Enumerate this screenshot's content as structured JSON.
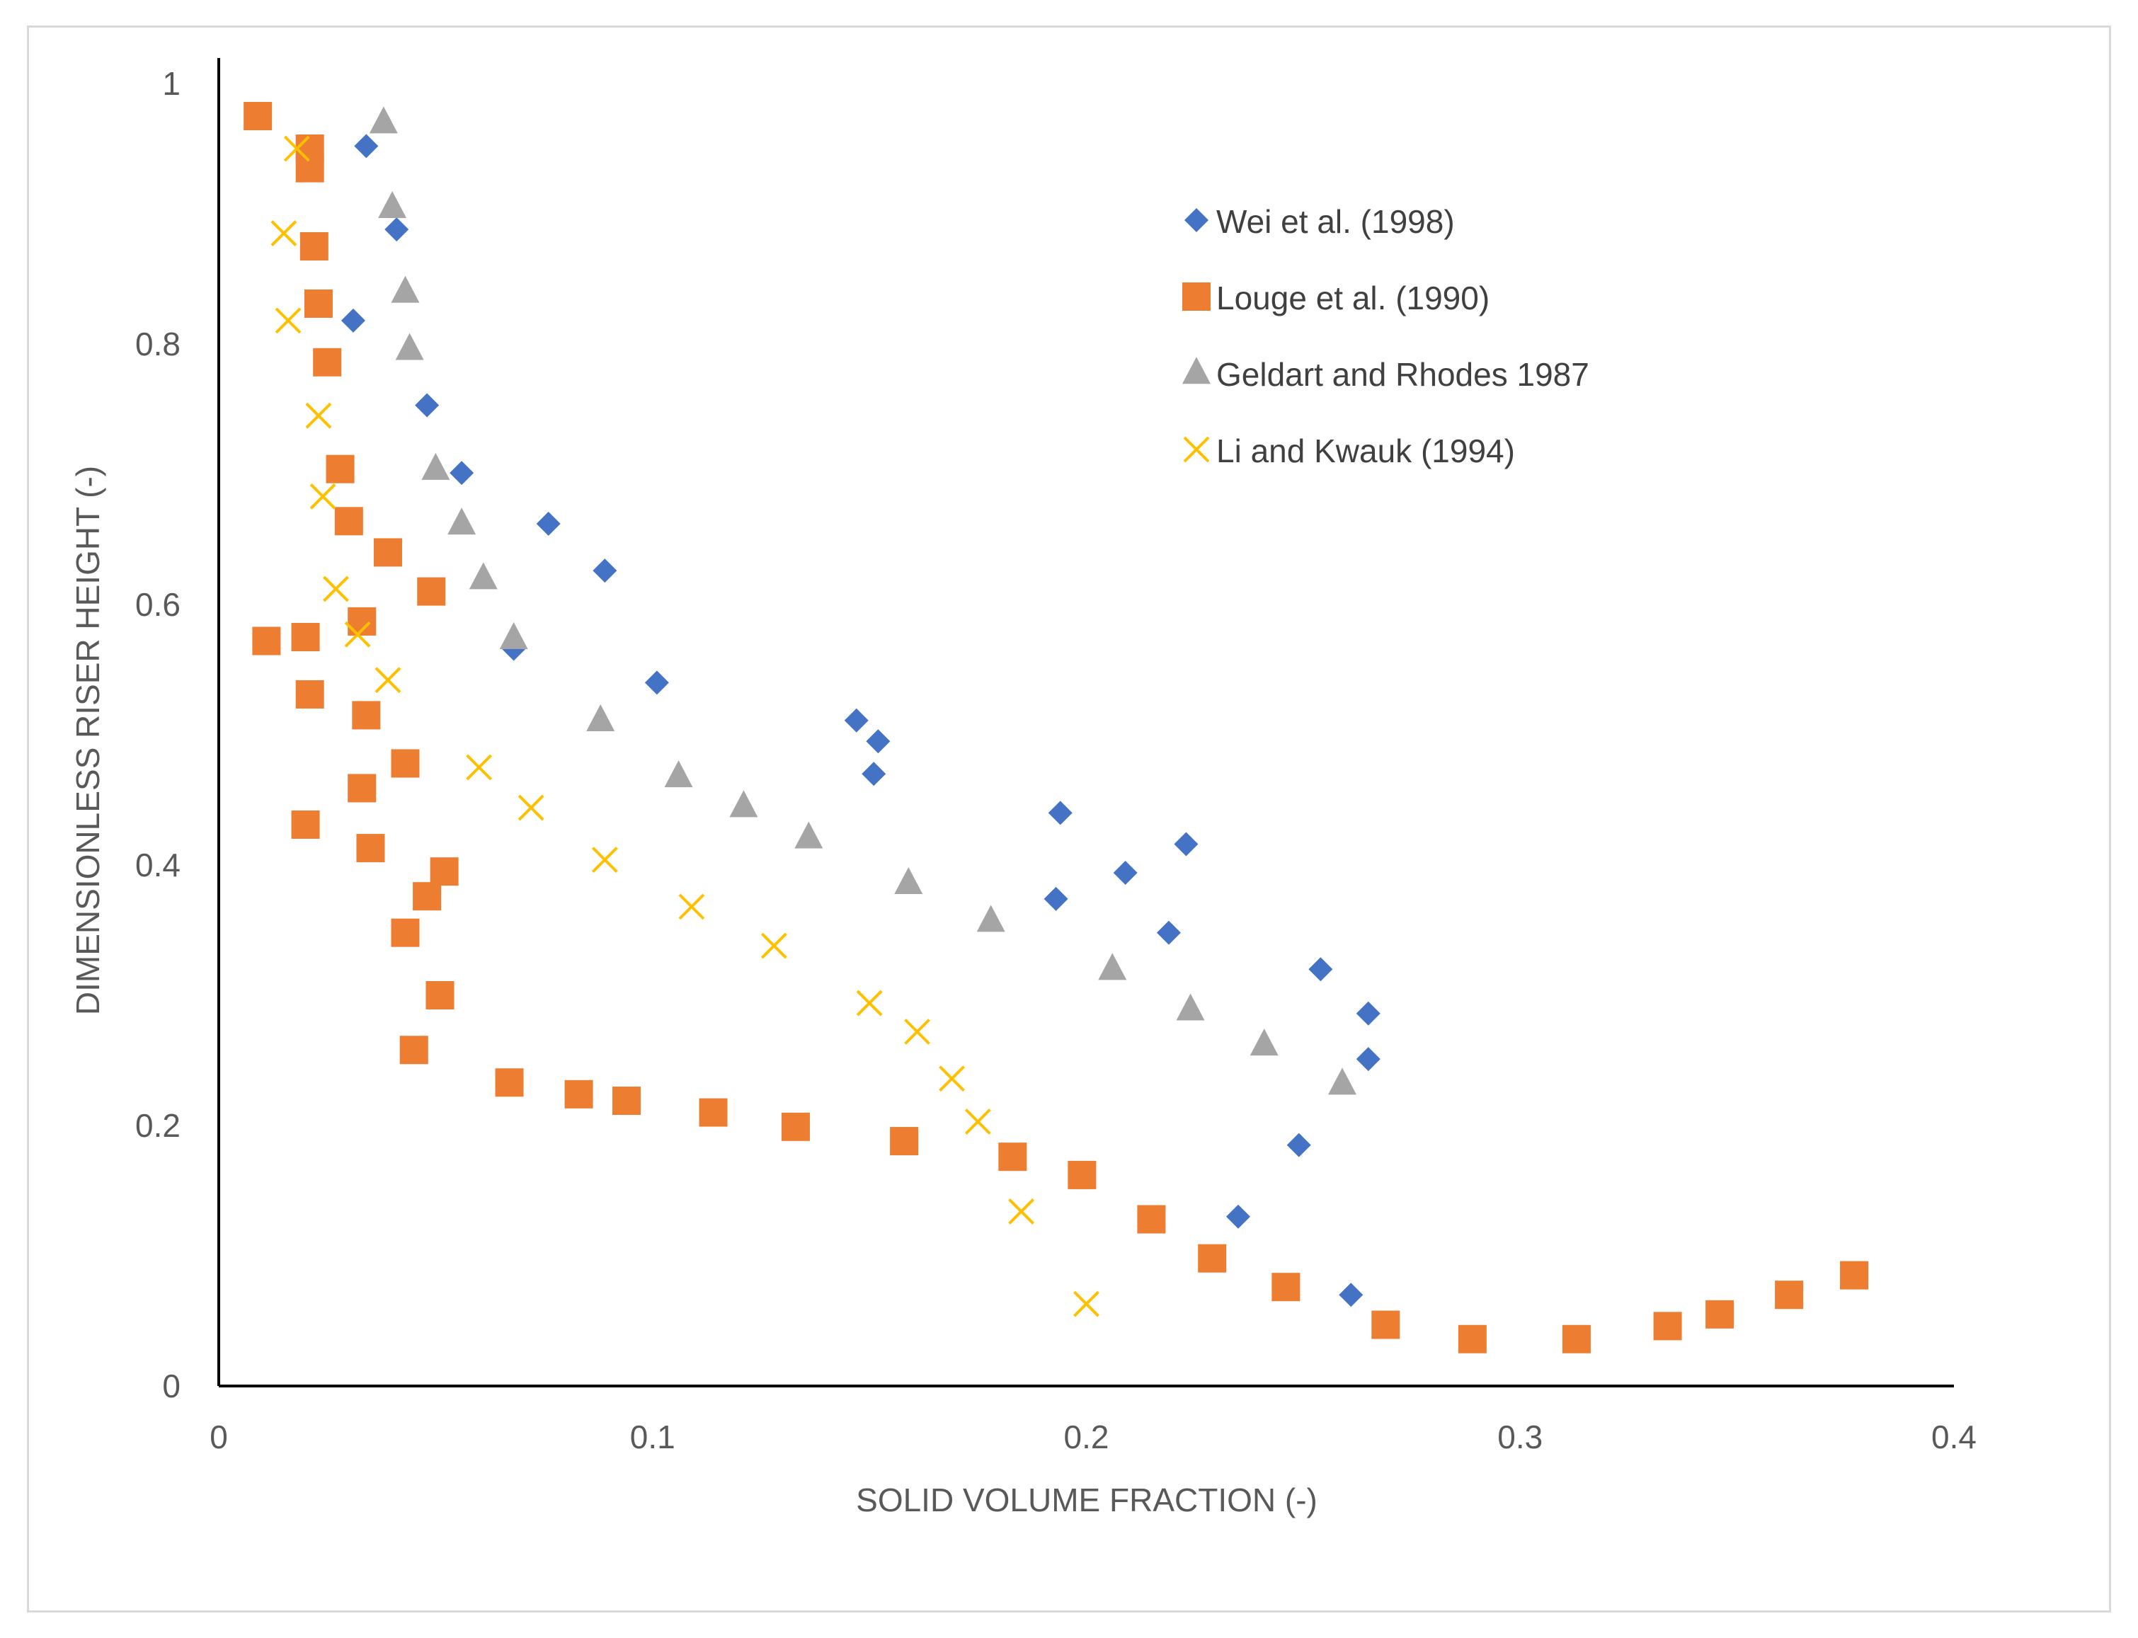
{
  "chart_data": {
    "type": "scatter",
    "title": "",
    "xlabel": "SOLID VOLUME FRACTION (-)",
    "ylabel": "DIMENSIONLESS RISER HEIGHT (-)",
    "xlim": [
      0,
      0.4
    ],
    "ylim": [
      0,
      1
    ],
    "xticks": [
      0,
      0.1,
      0.2,
      0.3,
      0.4
    ],
    "xtick_labels": [
      "0",
      "0.1",
      "0.2",
      "0.3",
      "0.4"
    ],
    "yticks": [
      0,
      0.2,
      0.4,
      0.6,
      0.8,
      1
    ],
    "ytick_labels": [
      "0",
      "0.2",
      "0.4",
      "0.6",
      "0.8",
      "1"
    ],
    "grid": false,
    "legend_position": "right",
    "series": [
      {
        "name": "Wei et al. (1998)",
        "marker": "diamond",
        "color": "#4472c4",
        "points": [
          [
            0.034,
            0.952
          ],
          [
            0.041,
            0.888
          ],
          [
            0.031,
            0.818
          ],
          [
            0.048,
            0.753
          ],
          [
            0.056,
            0.701
          ],
          [
            0.076,
            0.662
          ],
          [
            0.089,
            0.626
          ],
          [
            0.068,
            0.566
          ],
          [
            0.101,
            0.54
          ],
          [
            0.147,
            0.511
          ],
          [
            0.152,
            0.495
          ],
          [
            0.151,
            0.47
          ],
          [
            0.194,
            0.44
          ],
          [
            0.209,
            0.394
          ],
          [
            0.223,
            0.416
          ],
          [
            0.193,
            0.374
          ],
          [
            0.219,
            0.348
          ],
          [
            0.254,
            0.32
          ],
          [
            0.265,
            0.286
          ],
          [
            0.265,
            0.251
          ],
          [
            0.249,
            0.185
          ],
          [
            0.235,
            0.13
          ],
          [
            0.261,
            0.07
          ]
        ]
      },
      {
        "name": "Louge et al. (1990)",
        "marker": "square",
        "color": "#ed7d31",
        "points": [
          [
            0.009,
            0.975
          ],
          [
            0.021,
            0.95
          ],
          [
            0.021,
            0.935
          ],
          [
            0.022,
            0.875
          ],
          [
            0.023,
            0.831
          ],
          [
            0.025,
            0.786
          ],
          [
            0.028,
            0.704
          ],
          [
            0.03,
            0.664
          ],
          [
            0.039,
            0.64
          ],
          [
            0.049,
            0.61
          ],
          [
            0.033,
            0.587
          ],
          [
            0.011,
            0.572
          ],
          [
            0.02,
            0.575
          ],
          [
            0.021,
            0.531
          ],
          [
            0.034,
            0.515
          ],
          [
            0.043,
            0.478
          ],
          [
            0.033,
            0.459
          ],
          [
            0.02,
            0.431
          ],
          [
            0.035,
            0.413
          ],
          [
            0.052,
            0.395
          ],
          [
            0.048,
            0.376
          ],
          [
            0.043,
            0.348
          ],
          [
            0.051,
            0.3
          ],
          [
            0.045,
            0.258
          ],
          [
            0.067,
            0.233
          ],
          [
            0.083,
            0.224
          ],
          [
            0.094,
            0.219
          ],
          [
            0.114,
            0.21
          ],
          [
            0.133,
            0.199
          ],
          [
            0.158,
            0.188
          ],
          [
            0.183,
            0.176
          ],
          [
            0.199,
            0.162
          ],
          [
            0.215,
            0.128
          ],
          [
            0.229,
            0.098
          ],
          [
            0.246,
            0.076
          ],
          [
            0.269,
            0.047
          ],
          [
            0.289,
            0.036
          ],
          [
            0.313,
            0.036
          ],
          [
            0.334,
            0.046
          ],
          [
            0.346,
            0.055
          ],
          [
            0.362,
            0.07
          ],
          [
            0.377,
            0.085
          ]
        ]
      },
      {
        "name": "Geldart and Rhodes 1987",
        "marker": "triangle",
        "color": "#a5a5a5",
        "points": [
          [
            0.038,
            0.97
          ],
          [
            0.04,
            0.905
          ],
          [
            0.043,
            0.84
          ],
          [
            0.044,
            0.796
          ],
          [
            0.05,
            0.704
          ],
          [
            0.056,
            0.662
          ],
          [
            0.061,
            0.62
          ],
          [
            0.068,
            0.574
          ],
          [
            0.088,
            0.511
          ],
          [
            0.106,
            0.468
          ],
          [
            0.121,
            0.445
          ],
          [
            0.136,
            0.421
          ],
          [
            0.159,
            0.386
          ],
          [
            0.178,
            0.357
          ],
          [
            0.206,
            0.32
          ],
          [
            0.224,
            0.289
          ],
          [
            0.241,
            0.262
          ],
          [
            0.259,
            0.232
          ]
        ]
      },
      {
        "name": "Li and Kwauk (1994)",
        "marker": "x",
        "color": "#ffc000",
        "points": [
          [
            0.018,
            0.95
          ],
          [
            0.015,
            0.885
          ],
          [
            0.016,
            0.818
          ],
          [
            0.023,
            0.745
          ],
          [
            0.024,
            0.683
          ],
          [
            0.027,
            0.612
          ],
          [
            0.032,
            0.577
          ],
          [
            0.039,
            0.542
          ],
          [
            0.06,
            0.475
          ],
          [
            0.072,
            0.444
          ],
          [
            0.089,
            0.404
          ],
          [
            0.109,
            0.368
          ],
          [
            0.128,
            0.338
          ],
          [
            0.15,
            0.294
          ],
          [
            0.161,
            0.272
          ],
          [
            0.169,
            0.236
          ],
          [
            0.175,
            0.203
          ],
          [
            0.185,
            0.134
          ],
          [
            0.2,
            0.063
          ]
        ]
      }
    ]
  }
}
